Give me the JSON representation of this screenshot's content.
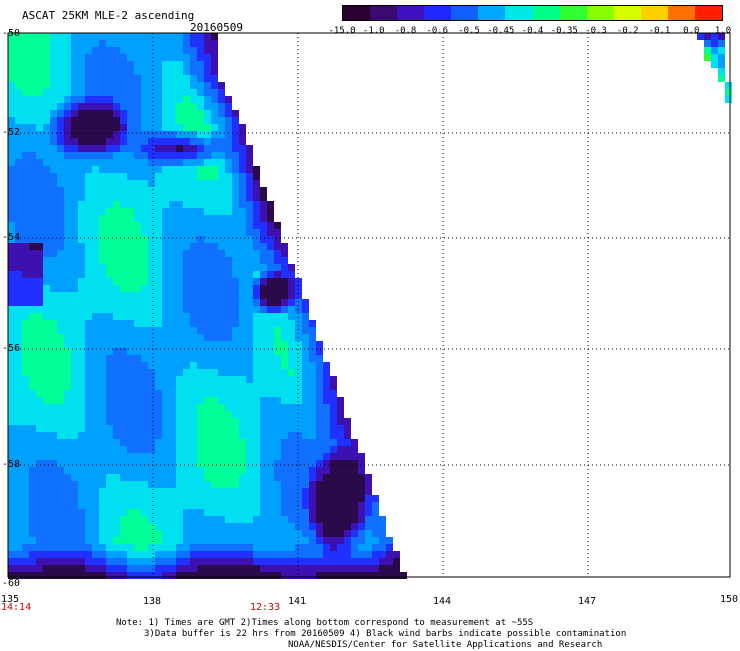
{
  "header": {
    "title": "ASCAT 25KM MLE-2 ascending",
    "date": "20160509"
  },
  "colorbar": {
    "labels": [
      "-15.0",
      "-1.0",
      "-0.8",
      "-0.6",
      "-0.5",
      "-0.45",
      "-0.4",
      "-0.35",
      "-0.3",
      "-0.2",
      "-0.1",
      "0.0",
      "1.0"
    ],
    "colors": [
      "#2a0030",
      "#3a0a70",
      "#3d10c0",
      "#1f28ff",
      "#1060ff",
      "#00a8ff",
      "#00e8e8",
      "#00ff88",
      "#30ff30",
      "#88ff00",
      "#d8ff00",
      "#ffd000",
      "#ff7000",
      "#ff2000"
    ]
  },
  "axes": {
    "lat_labels": [
      "-50",
      "-52",
      "-54",
      "-56",
      "-58",
      "-60"
    ],
    "lon_labels": [
      "135",
      "138",
      "141",
      "144",
      "147",
      "150"
    ]
  },
  "time_labels": [
    "14:14",
    "12:33"
  ],
  "notes": [
    "Note: 1) Times are GMT 2)Times along bottom correspond to measurement at ~55S",
    "3)Data buffer is 22 hrs from 20160509 4) Black wind barbs indicate possible contamination",
    "NOAA/NESDIS/Center for Satellite Applications and Research"
  ]
}
